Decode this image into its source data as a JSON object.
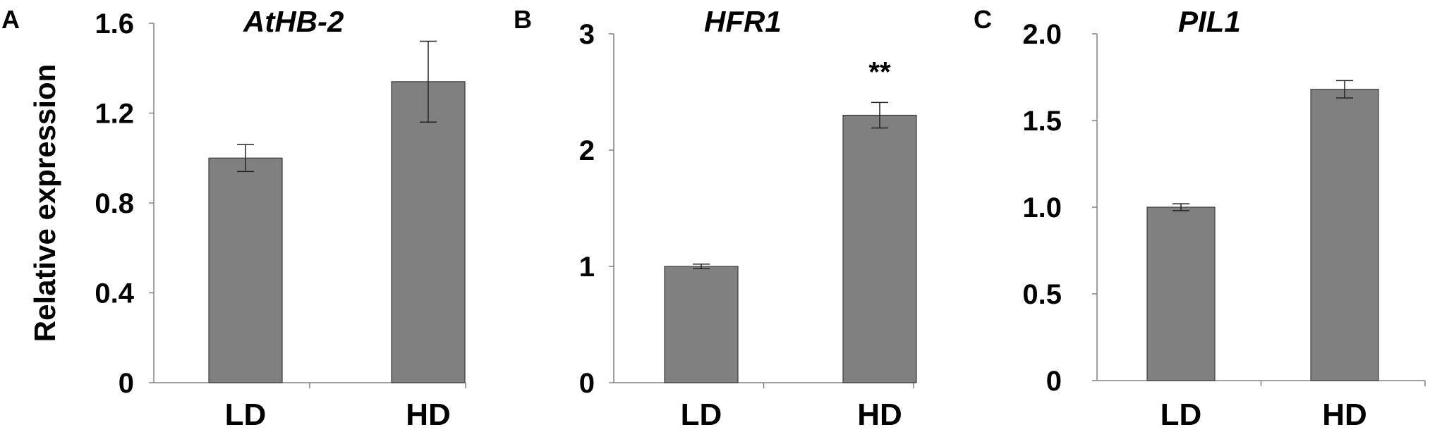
{
  "colors": {
    "bar_fill": "#808080",
    "bar_stroke": "#3a3a3a",
    "axis": "#808080",
    "text": "#000000"
  },
  "chart_data": [
    {
      "panel": "A",
      "type": "bar",
      "title": "AtHB-2",
      "ylabel": "Relative expression",
      "xlabel": "",
      "categories": [
        "LD",
        "HD"
      ],
      "values": [
        1.0,
        1.34
      ],
      "errors": [
        0.06,
        0.18
      ],
      "ylim": [
        0,
        1.6
      ],
      "yticks": [
        0,
        0.4,
        0.8,
        1.2,
        1.6
      ],
      "ytick_labels": [
        "0",
        "0.4",
        "0.8",
        "1.2",
        "1.6"
      ],
      "annotations": [
        "",
        ""
      ]
    },
    {
      "panel": "B",
      "type": "bar",
      "title": "HFR1",
      "ylabel": "",
      "xlabel": "",
      "categories": [
        "LD",
        "HD"
      ],
      "values": [
        1.0,
        2.3
      ],
      "errors": [
        0.02,
        0.11
      ],
      "ylim": [
        0,
        3
      ],
      "yticks": [
        0,
        1,
        2,
        3
      ],
      "ytick_labels": [
        "0",
        "1",
        "2",
        "3"
      ],
      "annotations": [
        "",
        "**"
      ]
    },
    {
      "panel": "C",
      "type": "bar",
      "title": "PIL1",
      "ylabel": "",
      "xlabel": "",
      "categories": [
        "LD",
        "HD"
      ],
      "values": [
        1.0,
        1.68
      ],
      "errors": [
        0.02,
        0.05
      ],
      "ylim": [
        0,
        2.0
      ],
      "yticks": [
        0,
        0.5,
        1.0,
        1.5,
        2.0
      ],
      "ytick_labels": [
        "0",
        "0.5",
        "1.0",
        "1.5",
        "2.0"
      ],
      "annotations": [
        "",
        ""
      ]
    }
  ]
}
